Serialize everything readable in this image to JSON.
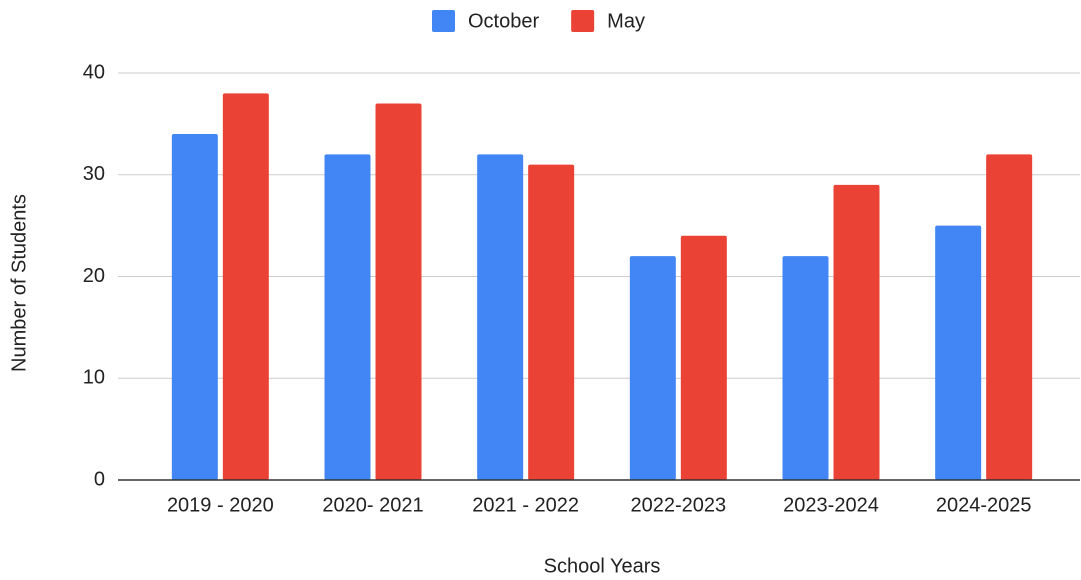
{
  "chart_data": {
    "type": "bar",
    "categories": [
      "2019 - 2020",
      "2020- 2021",
      "2021 - 2022",
      "2022-2023",
      "2023-2024",
      "2024-2025"
    ],
    "series": [
      {
        "name": "October",
        "color": "#4285f4",
        "values": [
          34,
          32,
          32,
          22,
          22,
          25
        ]
      },
      {
        "name": "May",
        "color": "#ea4335",
        "values": [
          38,
          37,
          31,
          24,
          29,
          32
        ]
      }
    ],
    "x_label": "School Years",
    "y_label": "Number of Students",
    "ylim": [
      0,
      40
    ],
    "yticks": [
      0,
      10,
      20,
      30,
      40
    ],
    "grid": true,
    "legend": "top"
  }
}
